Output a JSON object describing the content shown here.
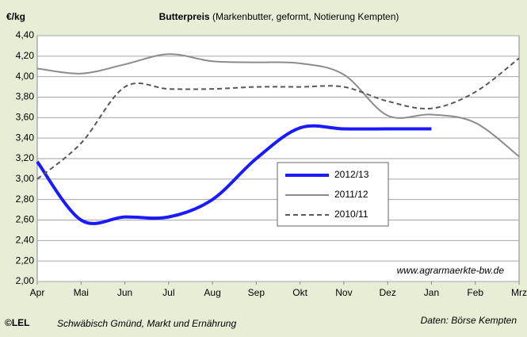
{
  "chart_data": {
    "type": "line",
    "title": "Butterpreis",
    "subtitle": "(Markenbutter, geformt, Notierung Kempten)",
    "y_label": "€/kg",
    "annotation": "www.agrarmaerkte-bw.de",
    "footer_logo": "©LEL",
    "footer_left": "Schwäbisch Gmünd, Markt und Ernährung",
    "footer_right": "Daten: Börse Kempten",
    "categories": [
      "Apr",
      "Mai",
      "Jun",
      "Jul",
      "Aug",
      "Sep",
      "Okt",
      "Nov",
      "Dez",
      "Jan",
      "Feb",
      "Mrz"
    ],
    "series": [
      {
        "name": "2012/13",
        "color": "#1a1aff",
        "width": 4,
        "dash": "none",
        "values": [
          3.17,
          2.6,
          2.63,
          2.63,
          2.8,
          3.2,
          3.5,
          3.49,
          3.49,
          3.49,
          null,
          null
        ]
      },
      {
        "name": "2011/12",
        "color": "#8c8c8c",
        "width": 2,
        "dash": "none",
        "values": [
          4.08,
          4.03,
          4.12,
          4.22,
          4.15,
          4.14,
          4.13,
          4.02,
          3.62,
          3.63,
          3.55,
          3.22
        ]
      },
      {
        "name": "2010/11",
        "color": "#595959",
        "width": 2,
        "dash": "6 4",
        "values": [
          3.0,
          3.35,
          3.9,
          3.88,
          3.88,
          3.9,
          3.9,
          3.9,
          3.76,
          3.69,
          3.85,
          4.18
        ]
      }
    ],
    "ylim": [
      2.0,
      4.4
    ],
    "yticks": [
      {
        "value": 2.0,
        "label": "2,00"
      },
      {
        "value": 2.2,
        "label": "2,20"
      },
      {
        "value": 2.4,
        "label": "2,40"
      },
      {
        "value": 2.6,
        "label": "2,60"
      },
      {
        "value": 2.8,
        "label": "2,80"
      },
      {
        "value": 3.0,
        "label": "3,00"
      },
      {
        "value": 3.2,
        "label": "3,20"
      },
      {
        "value": 3.4,
        "label": "3,40"
      },
      {
        "value": 3.6,
        "label": "3,60"
      },
      {
        "value": 3.8,
        "label": "3,80"
      },
      {
        "value": 4.0,
        "label": "4,00"
      },
      {
        "value": 4.2,
        "label": "4,20"
      },
      {
        "value": 4.4,
        "label": "4,40"
      }
    ],
    "grid": true
  }
}
